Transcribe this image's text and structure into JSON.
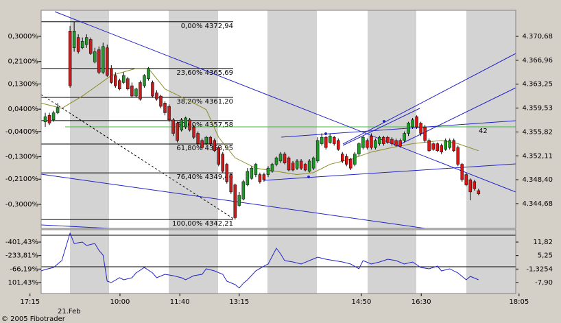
{
  "chart_data": [
    {
      "type": "candlestick",
      "x": [
        1,
        2,
        3,
        4,
        7,
        8,
        9,
        10,
        11,
        12,
        13,
        14,
        15,
        16,
        17,
        18,
        19,
        20,
        21,
        22,
        23,
        24,
        25,
        26,
        27,
        28,
        29,
        30,
        31,
        32,
        33,
        34,
        35,
        36,
        37,
        38,
        39,
        40,
        41,
        42,
        43,
        44,
        45,
        46,
        47,
        48,
        49,
        50,
        51,
        52,
        53,
        54,
        55,
        56,
        57,
        58,
        59,
        60,
        61,
        62,
        63,
        64,
        65,
        66,
        67,
        68,
        69,
        70,
        71,
        72,
        73,
        74,
        75,
        76,
        77,
        78,
        79,
        80,
        81,
        82,
        83,
        84,
        85,
        86,
        87,
        88,
        89,
        90,
        91,
        92,
        93,
        94,
        95,
        96,
        97,
        98,
        99,
        100,
        101,
        102,
        103,
        104,
        105,
        106
      ],
      "open": [
        4357.4,
        4358.4,
        4357.7,
        4358.8,
        4371.5,
        4368.9,
        4370.5,
        4368.9,
        4369.4,
        4370.2,
        4366.7,
        4368.6,
        4365.1,
        4368.9,
        4365.7,
        4364.6,
        4363.8,
        4363.5,
        4364.1,
        4363.0,
        4361.4,
        4363.5,
        4363.0,
        4364.1,
        4363.5,
        4361.9,
        4361.4,
        4360.3,
        4359.8,
        4357.7,
        4357.2,
        4356.1,
        4356.6,
        4357.7,
        4356.6,
        4355.6,
        4354.5,
        4354.0,
        4355.0,
        4354.5,
        4353.4,
        4352.4,
        4350.8,
        4349.2,
        4347.6,
        4344.4,
        4345.4,
        4347.6,
        4348.6,
        4349.2,
        4349.2,
        4349.2,
        4349.2,
        4349.7,
        4350.8,
        4351.3,
        4352.4,
        4351.8,
        4351.0,
        4350.2,
        4351.3,
        4350.8,
        4349.7,
        4350.2,
        4351.3,
        4354.0,
        4355.0,
        4354.2,
        4355.0,
        4354.5,
        4352.4,
        4352.0,
        4351.6,
        4350.8,
        4352.4,
        4353.4,
        4354.5,
        4355.2,
        4353.4,
        4354.0,
        4355.0,
        4355.0,
        4354.7,
        4354.5,
        4354.5,
        4354.5,
        4355.6,
        4356.6,
        4358.2,
        4357.2,
        4356.6,
        4354.5,
        4354.0,
        4354.0,
        4353.7,
        4353.1,
        4353.4,
        4354.5,
        4353.4,
        4350.8,
        4349.2,
        4348.4,
        4348.1,
        4346.7
      ],
      "high": [
        4358.8,
        4358.8,
        4359.1,
        4360.3,
        4372.3,
        4372.94,
        4371.0,
        4370.5,
        4371.0,
        4370.5,
        4368.9,
        4369.1,
        4369.7,
        4369.4,
        4366.2,
        4365.1,
        4364.1,
        4365.1,
        4364.4,
        4363.5,
        4362.7,
        4363.8,
        4364.8,
        4365.9,
        4363.8,
        4362.3,
        4361.6,
        4360.6,
        4360.1,
        4358.0,
        4357.4,
        4358.0,
        4358.2,
        4358.0,
        4356.9,
        4355.9,
        4354.8,
        4355.2,
        4355.2,
        4354.8,
        4353.7,
        4352.7,
        4351.0,
        4349.5,
        4347.8,
        4346.5,
        4348.4,
        4350.2,
        4350.5,
        4351.0,
        4349.5,
        4349.5,
        4350.5,
        4351.0,
        4352.0,
        4352.7,
        4352.7,
        4352.0,
        4351.3,
        4351.6,
        4351.6,
        4351.0,
        4351.6,
        4352.0,
        4355.0,
        4355.6,
        4355.2,
        4355.6,
        4355.2,
        4354.8,
        4352.7,
        4352.4,
        4351.8,
        4352.7,
        4354.2,
        4355.2,
        4354.8,
        4355.6,
        4354.8,
        4355.2,
        4355.2,
        4355.2,
        4355.0,
        4354.8,
        4354.8,
        4355.9,
        4357.4,
        4358.0,
        4358.4,
        4357.4,
        4356.9,
        4354.8,
        4354.2,
        4354.2,
        4354.0,
        4354.8,
        4354.8,
        4354.8,
        4353.7,
        4351.0,
        4349.5,
        4348.6,
        4348.4,
        4347.0
      ],
      "low": [
        4356.6,
        4356.9,
        4357.4,
        4358.6,
        4362.7,
        4368.3,
        4368.0,
        4368.7,
        4368.9,
        4367.8,
        4366.5,
        4364.8,
        4364.8,
        4364.4,
        4363.3,
        4362.7,
        4362.3,
        4363.3,
        4362.3,
        4361.2,
        4361.2,
        4360.7,
        4362.7,
        4363.8,
        4361.2,
        4360.7,
        4359.5,
        4358.4,
        4357.4,
        4355.2,
        4354.2,
        4355.9,
        4356.3,
        4355.9,
        4354.7,
        4353.7,
        4353.1,
        4353.7,
        4353.6,
        4352.7,
        4350.5,
        4349.5,
        4347.8,
        4346.2,
        4342.21,
        4344.2,
        4345.2,
        4347.4,
        4348.4,
        4348.8,
        4347.8,
        4348.1,
        4348.8,
        4349.5,
        4350.5,
        4351.0,
        4350.8,
        4349.7,
        4349.7,
        4349.9,
        4349.9,
        4349.7,
        4349.5,
        4349.9,
        4351.0,
        4353.7,
        4353.1,
        4354.0,
        4353.7,
        4352.9,
        4351.0,
        4350.5,
        4349.9,
        4350.5,
        4352.0,
        4353.1,
        4353.1,
        4353.1,
        4353.1,
        4353.7,
        4353.7,
        4354.0,
        4353.7,
        4353.5,
        4353.4,
        4354.2,
        4355.2,
        4356.3,
        4356.3,
        4355.2,
        4354.2,
        4352.7,
        4352.9,
        4352.7,
        4352.4,
        4352.9,
        4353.1,
        4352.7,
        4350.5,
        4348.1,
        4347.4,
        4345.2,
        4346.7,
        4346.0
      ],
      "close": [
        4358.2,
        4357.2,
        4358.8,
        4359.6,
        4363.0,
        4371.5,
        4368.3,
        4369.9,
        4370.5,
        4368.0,
        4368.3,
        4365.1,
        4369.1,
        4364.6,
        4363.5,
        4363.0,
        4362.5,
        4364.6,
        4362.5,
        4361.4,
        4362.5,
        4360.9,
        4364.6,
        4365.7,
        4361.4,
        4360.9,
        4359.8,
        4358.8,
        4357.7,
        4355.6,
        4354.5,
        4357.7,
        4358.0,
        4356.1,
        4355.0,
        4354.0,
        4353.4,
        4355.0,
        4354.0,
        4352.9,
        4350.8,
        4349.7,
        4348.1,
        4346.5,
        4342.5,
        4346.0,
        4348.1,
        4349.7,
        4350.2,
        4350.8,
        4348.1,
        4348.4,
        4350.2,
        4350.8,
        4351.8,
        4352.4,
        4351.0,
        4349.9,
        4349.9,
        4351.3,
        4350.2,
        4349.9,
        4351.3,
        4351.8,
        4354.5,
        4355.0,
        4353.4,
        4355.2,
        4354.0,
        4353.1,
        4351.3,
        4350.8,
        4350.2,
        4352.4,
        4354.0,
        4355.0,
        4353.4,
        4353.4,
        4354.5,
        4355.0,
        4354.0,
        4354.2,
        4354.0,
        4353.7,
        4353.6,
        4355.6,
        4357.2,
        4357.7,
        4356.6,
        4355.6,
        4354.5,
        4352.9,
        4353.1,
        4352.9,
        4352.7,
        4354.5,
        4354.5,
        4352.9,
        4350.8,
        4348.4,
        4347.6,
        4346.5,
        4347.0,
        4346.2
      ],
      "up_color": "#1f9a2a",
      "down_color": "#d01818",
      "wick_color": "#000000",
      "overlay": {
        "color": "#8c8c28",
        "x": [
          0,
          5,
          10,
          17,
          23,
          26,
          30,
          37,
          40,
          43,
          47,
          52,
          57,
          62,
          66,
          70,
          75,
          80,
          85,
          90,
          97,
          101,
          106
        ],
        "values": [
          4360.3,
          4359.5,
          4361.4,
          4364.6,
          4365.7,
          4365.7,
          4362.5,
          4360.3,
          4359.3,
          4355.0,
          4351.8,
          4350.2,
          4349.7,
          4349.2,
          4349.5,
          4350.8,
          4351.6,
          4352.7,
          4353.4,
          4354.0,
          4354.5,
          4354.0,
          4352.9
        ]
      },
      "fib_levels": [
        {
          "value": 4372.94,
          "label": "0,00% 4372,94"
        },
        {
          "value": 4365.69,
          "label": "23,60% 4365,69"
        },
        {
          "value": 4361.2,
          "label": "38,20% 4361,20"
        },
        {
          "value": 4357.58,
          "label": "50,00% 4357,58"
        },
        {
          "value": 4353.95,
          "label": "61,80% 4353,95"
        },
        {
          "value": 4349.46,
          "label": "76,40% 4349,46"
        },
        {
          "value": 4342.21,
          "label": "100,00% 4342,21"
        }
      ],
      "annotation": "42",
      "xlim": [
        0,
        115
      ],
      "ylim": [
        4340.84,
        4374.73
      ],
      "yticks": [
        {
          "value": 4370.68,
          "label": "4.370,68"
        },
        {
          "value": 4366.96,
          "label": "4.366,96"
        },
        {
          "value": 4363.25,
          "label": "4.363,25"
        },
        {
          "value": 4359.53,
          "label": "4.359,53"
        },
        {
          "value": 4355.82,
          "label": "4.355,82"
        },
        {
          "value": 4352.11,
          "label": "4.352,11"
        },
        {
          "value": 4348.4,
          "label": "4.348,40"
        },
        {
          "value": 4344.68,
          "label": "4.344,68"
        }
      ],
      "y2lim": [
        -0.3857,
        0.393
      ],
      "y2ticks": [
        {
          "value": 0.3,
          "label": "0,3000%"
        },
        {
          "value": 0.21,
          "label": "0,2100%"
        },
        {
          "value": 0.13,
          "label": "0,1300%"
        },
        {
          "value": 0.04,
          "label": "0,0400%"
        },
        {
          "value": -0.04,
          "label": "-0,0400%"
        },
        {
          "value": -0.13,
          "label": "-0,1300%"
        },
        {
          "value": -0.21,
          "label": "-0,2100%"
        },
        {
          "value": -0.3,
          "label": "-0,3000%"
        }
      ]
    },
    {
      "type": "line",
      "color": "#2323c8",
      "x": [
        0,
        1,
        3,
        5,
        7,
        8,
        10,
        11,
        13,
        14,
        15,
        16,
        17,
        19,
        20,
        22,
        23,
        25,
        27,
        28,
        30,
        32,
        34,
        35,
        37,
        39,
        40,
        42,
        44,
        45,
        47,
        48,
        49,
        50,
        52,
        54,
        55,
        57,
        58,
        59,
        61,
        63,
        65,
        67,
        69,
        71,
        73,
        75,
        77,
        78,
        80,
        82,
        84,
        86,
        88,
        90,
        92,
        94,
        96,
        97,
        99,
        101,
        103,
        104,
        106
      ],
      "values": [
        -2.22,
        -1.55,
        -0.55,
        2.8,
        16.16,
        11.15,
        11.82,
        10.15,
        11.15,
        7.81,
        5.47,
        -7.23,
        -7.9,
        -5.56,
        -6.56,
        -5.56,
        -3.22,
        -0.55,
        -3.22,
        -5.56,
        -3.89,
        -4.56,
        -5.56,
        -6.56,
        -4.56,
        -3.89,
        -1.21,
        -2.22,
        -3.89,
        -7.23,
        -8.9,
        -10.57,
        -8.23,
        -6.56,
        -2.22,
        0.12,
        1.13,
        8.81,
        6.14,
        2.8,
        2.13,
        1.13,
        2.8,
        4.47,
        3.47,
        2.8,
        2.13,
        1.13,
        -1.21,
        2.8,
        1.13,
        2.13,
        3.47,
        2.8,
        1.13,
        2.13,
        -0.55,
        -1.21,
        0.12,
        -2.22,
        -1.21,
        -3.22,
        -6.56,
        -4.89,
        -6.56
      ],
      "xlim": [
        0,
        115
      ],
      "xticks": [
        {
          "value": -2.7,
          "label": "17:15"
        },
        {
          "value": 19.1,
          "label": "10:00"
        },
        {
          "value": 33.6,
          "label": "11:40"
        },
        {
          "value": 48.0,
          "label": "13:15"
        },
        {
          "value": 77.6,
          "label": "14:50"
        },
        {
          "value": 92.1,
          "label": "16:30"
        },
        {
          "value": 115.8,
          "label": "18:05"
        }
      ],
      "ylim": [
        -13.25,
        17.84
      ],
      "yticks": [
        {
          "value": 11.82,
          "label": "11,82"
        },
        {
          "value": 5.25,
          "label": "5,25"
        },
        {
          "value": -1.3254,
          "label": "-1,3254"
        },
        {
          "value": -7.9,
          "label": "-7,90"
        }
      ],
      "y2lim": [
        237.8,
        -554.85
      ],
      "y2ticks": [
        {
          "value": -401.43,
          "label": "-401,43%"
        },
        {
          "value": -233.81,
          "label": "-233,81%"
        },
        {
          "value": -66.19,
          "label": "-66,19%"
        },
        {
          "value": 101.43,
          "label": "101,43%"
        }
      ],
      "date_label": "21.Feb",
      "footer": "© 2005 Fibotrader"
    }
  ]
}
